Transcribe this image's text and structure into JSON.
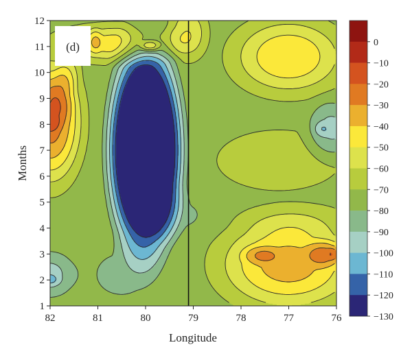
{
  "chart_data": {
    "type": "heatmap",
    "panel_label": "(d)",
    "xlabel": "Longitude",
    "ylabel": "Months",
    "x_axis": {
      "reversed": true,
      "range": [
        82,
        76
      ],
      "ticks": [
        "82",
        "81",
        "80",
        "79",
        "78",
        "77",
        "76"
      ]
    },
    "y_axis": {
      "range": [
        1,
        12
      ],
      "ticks": [
        "1",
        "2",
        "3",
        "4",
        "5",
        "6",
        "7",
        "8",
        "9",
        "10",
        "11",
        "12"
      ]
    },
    "reference_line_longitude": 79.1,
    "colorbar": {
      "labels": [
        "0",
        "−10",
        "−20",
        "−30",
        "−40",
        "−50",
        "−60",
        "−70",
        "−80",
        "−90",
        "−100",
        "−110",
        "−120",
        "−130"
      ],
      "bins": [
        {
          "upper": 10,
          "lower": 0,
          "color": "#8e1410"
        },
        {
          "upper": 0,
          "lower": -10,
          "color": "#b22a18"
        },
        {
          "upper": -10,
          "lower": -20,
          "color": "#d4531f"
        },
        {
          "upper": -20,
          "lower": -30,
          "color": "#e07a22"
        },
        {
          "upper": -30,
          "lower": -40,
          "color": "#ebb02e"
        },
        {
          "upper": -40,
          "lower": -50,
          "color": "#fbe83a"
        },
        {
          "upper": -50,
          "lower": -60,
          "color": "#dde24c"
        },
        {
          "upper": -60,
          "lower": -70,
          "color": "#b8cc3d"
        },
        {
          "upper": -70,
          "lower": -80,
          "color": "#92b84a"
        },
        {
          "upper": -80,
          "lower": -90,
          "color": "#89b98a"
        },
        {
          "upper": -90,
          "lower": -100,
          "color": "#a6d0c4"
        },
        {
          "upper": -100,
          "lower": -110,
          "color": "#6cb7d2"
        },
        {
          "upper": -110,
          "lower": -120,
          "color": "#3563a8"
        },
        {
          "upper": -120,
          "lower": -130,
          "color": "#2b2676"
        }
      ]
    },
    "features": [
      {
        "kind": "min",
        "lon": 80.0,
        "month": 7.0,
        "value": -115,
        "width": 1.05,
        "height": 5.6
      },
      {
        "kind": "min",
        "lon": 79.97,
        "month": 9.05,
        "value": -16,
        "width": 0.18,
        "height": 0.35
      },
      {
        "kind": "max",
        "lon": 81.98,
        "month": 8.1,
        "value": 48,
        "width": 0.9,
        "height": 3.3
      },
      {
        "kind": "max",
        "lon": 81.8,
        "month": 9.0,
        "value": 13,
        "width": 0.45,
        "height": 1.4
      },
      {
        "kind": "max",
        "lon": 81.6,
        "month": 10.0,
        "value": 12,
        "width": 0.35,
        "height": 1.0
      },
      {
        "kind": "max",
        "lon": 82.0,
        "month": 8.0,
        "value": 12,
        "width": 0.3,
        "height": 0.5
      },
      {
        "kind": "max",
        "lon": 80.6,
        "month": 11.1,
        "value": 28,
        "width": 1.8,
        "height": 1.0
      },
      {
        "kind": "max",
        "lon": 79.9,
        "month": 11.0,
        "value": 25,
        "width": 0.3,
        "height": 0.3
      },
      {
        "kind": "max",
        "lon": 81.05,
        "month": 11.2,
        "value": 12,
        "width": 0.2,
        "height": 0.7
      },
      {
        "kind": "max",
        "lon": 79.1,
        "month": 11.5,
        "value": 22,
        "width": 0.55,
        "height": 1.4
      },
      {
        "kind": "max",
        "lon": 77.0,
        "month": 10.6,
        "value": 32,
        "width": 1.6,
        "height": 2.0
      },
      {
        "kind": "max",
        "lon": 77.2,
        "month": 6.6,
        "value": 6,
        "width": 2.0,
        "height": 1.8
      },
      {
        "kind": "min",
        "lon": 76.1,
        "month": 7.8,
        "value": -22,
        "width": 0.75,
        "height": 1.6
      },
      {
        "kind": "min",
        "lon": 76.3,
        "month": 7.8,
        "value": -10,
        "width": 0.25,
        "height": 0.4
      },
      {
        "kind": "max",
        "lon": 76.9,
        "month": 4.35,
        "value": 8,
        "width": 1.6,
        "height": 0.9
      },
      {
        "kind": "max",
        "lon": 77.0,
        "month": 2.6,
        "value": 38,
        "width": 2.0,
        "height": 2.4
      },
      {
        "kind": "max",
        "lon": 77.6,
        "month": 2.95,
        "value": 15,
        "width": 0.55,
        "height": 0.5
      },
      {
        "kind": "max",
        "lon": 76.2,
        "month": 3.0,
        "value": 22,
        "width": 0.6,
        "height": 0.75
      },
      {
        "kind": "max",
        "lon": 76.05,
        "month": 3.0,
        "value": 10,
        "width": 0.22,
        "height": 0.35
      },
      {
        "kind": "min",
        "lon": 82.0,
        "month": 2.2,
        "value": -22,
        "width": 0.85,
        "height": 1.4
      },
      {
        "kind": "min",
        "lon": 82.0,
        "month": 2.0,
        "value": -12,
        "width": 0.3,
        "height": 0.35
      },
      {
        "kind": "min",
        "lon": 80.5,
        "month": 2.2,
        "value": -12,
        "width": 1.2,
        "height": 1.8
      },
      {
        "kind": "min",
        "lon": 79.3,
        "month": 4.5,
        "value": -10,
        "width": 1.2,
        "height": 1.4
      }
    ],
    "base_value": -72,
    "grid": false,
    "legend": "colorbar-right"
  }
}
